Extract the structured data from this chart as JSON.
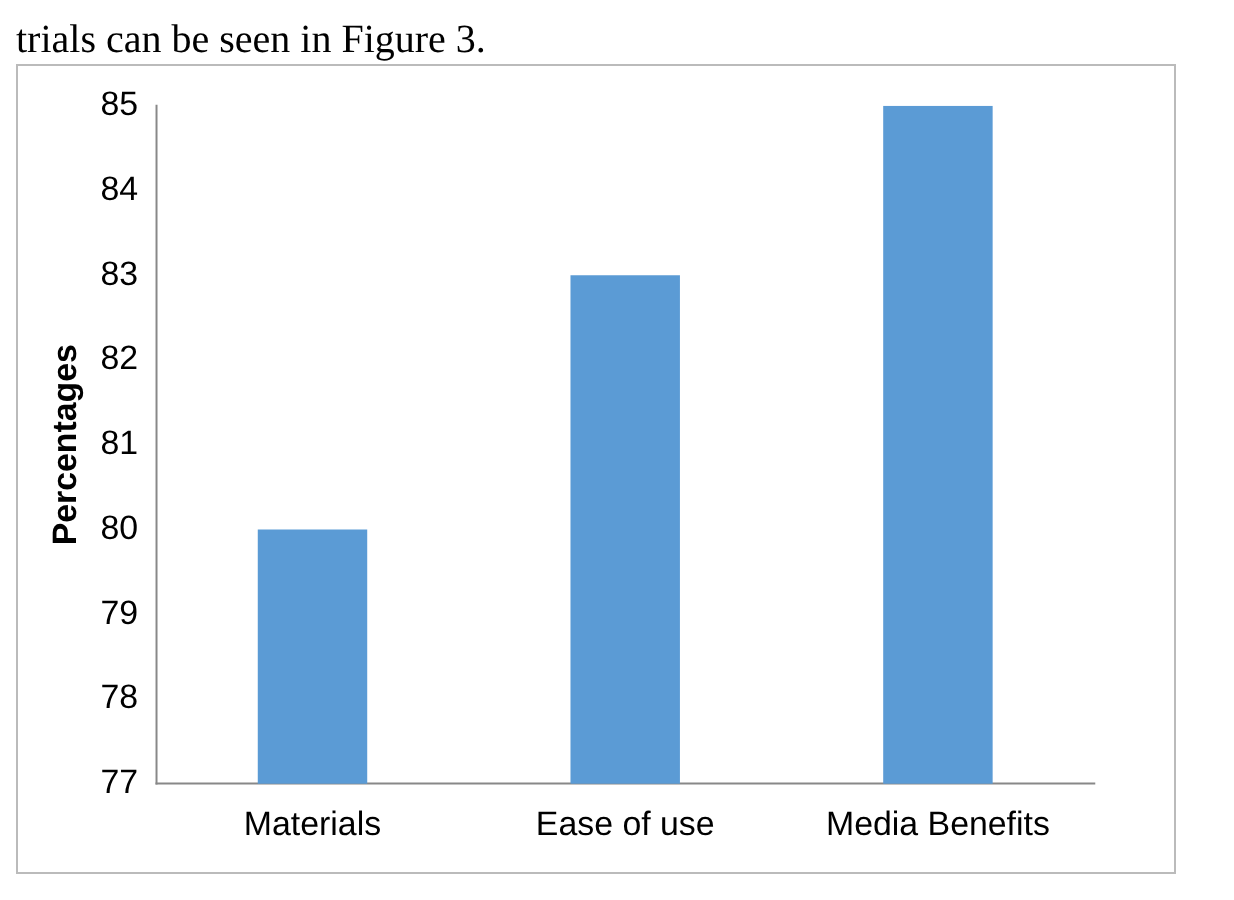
{
  "chart_data": {
    "type": "bar",
    "ylabel": "Percentages",
    "categories": [
      "Materials",
      "Ease of use",
      "Media Benefits"
    ],
    "values": [
      80,
      83,
      85
    ],
    "color": "#5b9bd5",
    "ylim": [
      77,
      85
    ],
    "yticks": [
      77,
      78,
      79,
      80,
      81,
      82,
      83,
      84,
      85
    ],
    "grid": false,
    "annotations": [
      "trials can be seen in Figure 3."
    ]
  }
}
